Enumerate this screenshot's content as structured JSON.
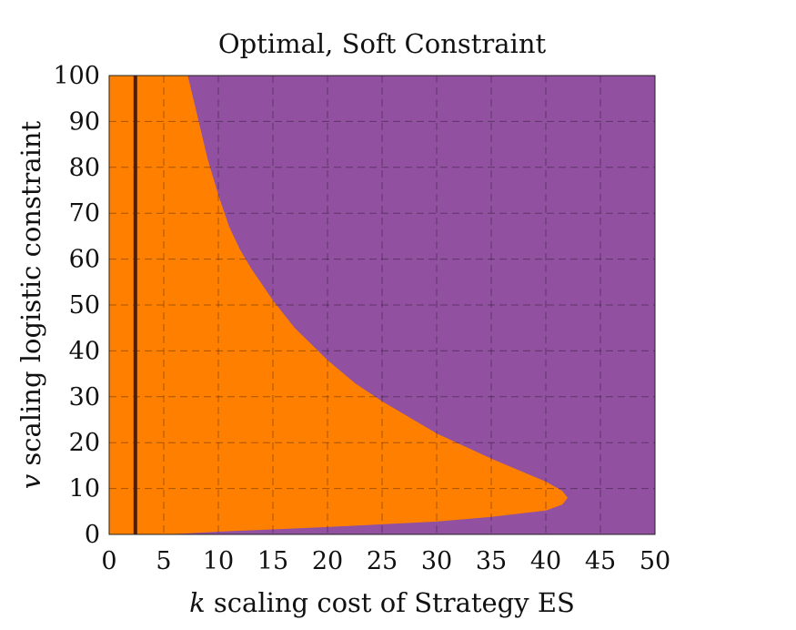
{
  "chart_data": {
    "type": "area",
    "title": "Optimal, Soft Constraint",
    "xlabel_var": "k",
    "xlabel_text": " scaling cost of Strategy ES",
    "ylabel_var": "v",
    "ylabel_text": " scaling logistic constraint",
    "xlim": [
      0,
      50
    ],
    "ylim": [
      0,
      100
    ],
    "xticks": [
      0,
      5,
      10,
      15,
      20,
      25,
      30,
      35,
      40,
      45,
      50
    ],
    "yticks": [
      0,
      10,
      20,
      30,
      40,
      50,
      60,
      70,
      80,
      90,
      100
    ],
    "grid": true,
    "grid_style": "dashed",
    "background_color": "#9150A0",
    "region_color": "#FF8000",
    "vertical_line": {
      "x": 2.4,
      "color": "#4A1E08"
    },
    "region_boundary": [
      {
        "k": 7.2,
        "v": 100
      },
      {
        "k": 8.0,
        "v": 92
      },
      {
        "k": 9.0,
        "v": 82
      },
      {
        "k": 10.0,
        "v": 74
      },
      {
        "k": 11.0,
        "v": 67
      },
      {
        "k": 12.0,
        "v": 62
      },
      {
        "k": 13.0,
        "v": 58
      },
      {
        "k": 14.0,
        "v": 54.5
      },
      {
        "k": 15.0,
        "v": 51
      },
      {
        "k": 17.0,
        "v": 45
      },
      {
        "k": 20.0,
        "v": 38
      },
      {
        "k": 22.5,
        "v": 33
      },
      {
        "k": 25.0,
        "v": 29
      },
      {
        "k": 30.0,
        "v": 22
      },
      {
        "k": 35.0,
        "v": 16.5
      },
      {
        "k": 40.0,
        "v": 11.5
      },
      {
        "k": 41.5,
        "v": 9.5
      },
      {
        "k": 42.0,
        "v": 8.0
      },
      {
        "k": 41.5,
        "v": 6.5
      },
      {
        "k": 40.0,
        "v": 5.2
      },
      {
        "k": 35.0,
        "v": 3.8
      },
      {
        "k": 30.0,
        "v": 2.8
      },
      {
        "k": 25.0,
        "v": 2.2
      },
      {
        "k": 20.0,
        "v": 1.6
      },
      {
        "k": 15.0,
        "v": 1.1
      },
      {
        "k": 10.0,
        "v": 0.6
      },
      {
        "k": 7.0,
        "v": 0.2
      },
      {
        "k": 5.0,
        "v": 0.0
      }
    ]
  }
}
